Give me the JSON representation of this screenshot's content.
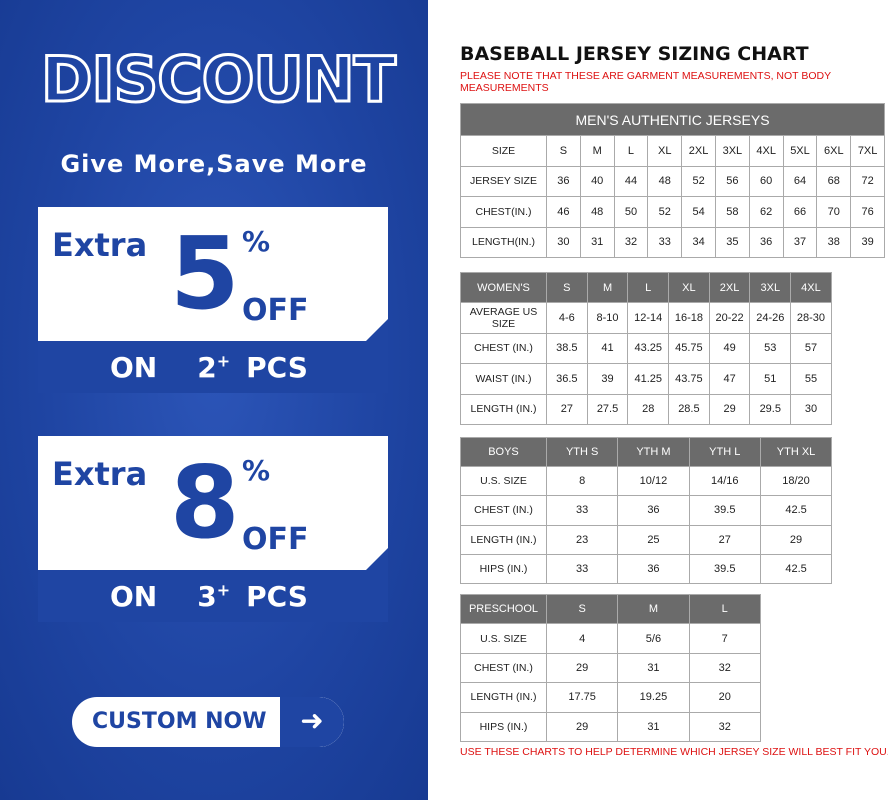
{
  "promo": {
    "headline": "DISCOUNT",
    "tagline": "Give More,Save More",
    "offers": [
      {
        "extra": "Extra",
        "percent": "5",
        "pct_sign": "%",
        "off": "OFF",
        "on": "ON",
        "qty": "2",
        "plus": "+",
        "pcs": "PCS"
      },
      {
        "extra": "Extra",
        "percent": "8",
        "pct_sign": "%",
        "off": "OFF",
        "on": "ON",
        "qty": "3",
        "plus": "+",
        "pcs": "PCS"
      }
    ],
    "cta_label": "CUSTOM NOW",
    "cta_icon": "arrow-right-icon",
    "brand_color": "#1f45a3"
  },
  "chart": {
    "title": "BASEBALL JERSEY SIZING CHART",
    "note": "PLEASE NOTE THAT THESE ARE GARMENT MEASUREMENTS, NOT BODY MEASUREMENTS",
    "footer": "USE THESE CHARTS TO HELP DETERMINE WHICH JERSEY SIZE WILL BEST FIT YOU.",
    "tables": [
      {
        "caption": "MEN'S AUTHENTIC JERSEYS",
        "header": null,
        "rows": [
          [
            "SIZE",
            "S",
            "M",
            "L",
            "XL",
            "2XL",
            "3XL",
            "4XL",
            "5XL",
            "6XL",
            "7XL"
          ],
          [
            "JERSEY SIZE",
            "36",
            "40",
            "44",
            "48",
            "52",
            "56",
            "60",
            "64",
            "68",
            "72"
          ],
          [
            "CHEST(IN.)",
            "46",
            "48",
            "50",
            "52",
            "54",
            "58",
            "62",
            "66",
            "70",
            "76"
          ],
          [
            "LENGTH(IN.)",
            "30",
            "31",
            "32",
            "33",
            "34",
            "35",
            "36",
            "37",
            "38",
            "39"
          ]
        ]
      },
      {
        "caption": null,
        "header": [
          "WOMEN'S",
          "S",
          "M",
          "L",
          "XL",
          "2XL",
          "3XL",
          "4XL"
        ],
        "rows": [
          [
            "AVERAGE US SIZE",
            "4-6",
            "8-10",
            "12-14",
            "16-18",
            "20-22",
            "24-26",
            "28-30"
          ],
          [
            "CHEST (IN.)",
            "38.5",
            "41",
            "43.25",
            "45.75",
            "49",
            "53",
            "57"
          ],
          [
            "WAIST (IN.)",
            "36.5",
            "39",
            "41.25",
            "43.75",
            "47",
            "51",
            "55"
          ],
          [
            "LENGTH (IN.)",
            "27",
            "27.5",
            "28",
            "28.5",
            "29",
            "29.5",
            "30"
          ]
        ]
      },
      {
        "caption": null,
        "header": [
          "BOYS",
          "YTH S",
          "YTH M",
          "YTH L",
          "YTH XL"
        ],
        "rows": [
          [
            "U.S. SIZE",
            "8",
            "10/12",
            "14/16",
            "18/20"
          ],
          [
            "CHEST (IN.)",
            "33",
            "36",
            "39.5",
            "42.5"
          ],
          [
            "LENGTH (IN.)",
            "23",
            "25",
            "27",
            "29"
          ],
          [
            "HIPS (IN.)",
            "33",
            "36",
            "39.5",
            "42.5"
          ]
        ]
      },
      {
        "caption": null,
        "header": [
          "PRESCHOOL",
          "S",
          "M",
          "L"
        ],
        "rows": [
          [
            "U.S. SIZE",
            "4",
            "5/6",
            "7"
          ],
          [
            "CHEST (IN.)",
            "29",
            "31",
            "32"
          ],
          [
            "LENGTH (IN.)",
            "17.75",
            "19.25",
            "20"
          ],
          [
            "HIPS (IN.)",
            "29",
            "31",
            "32"
          ]
        ]
      }
    ]
  }
}
